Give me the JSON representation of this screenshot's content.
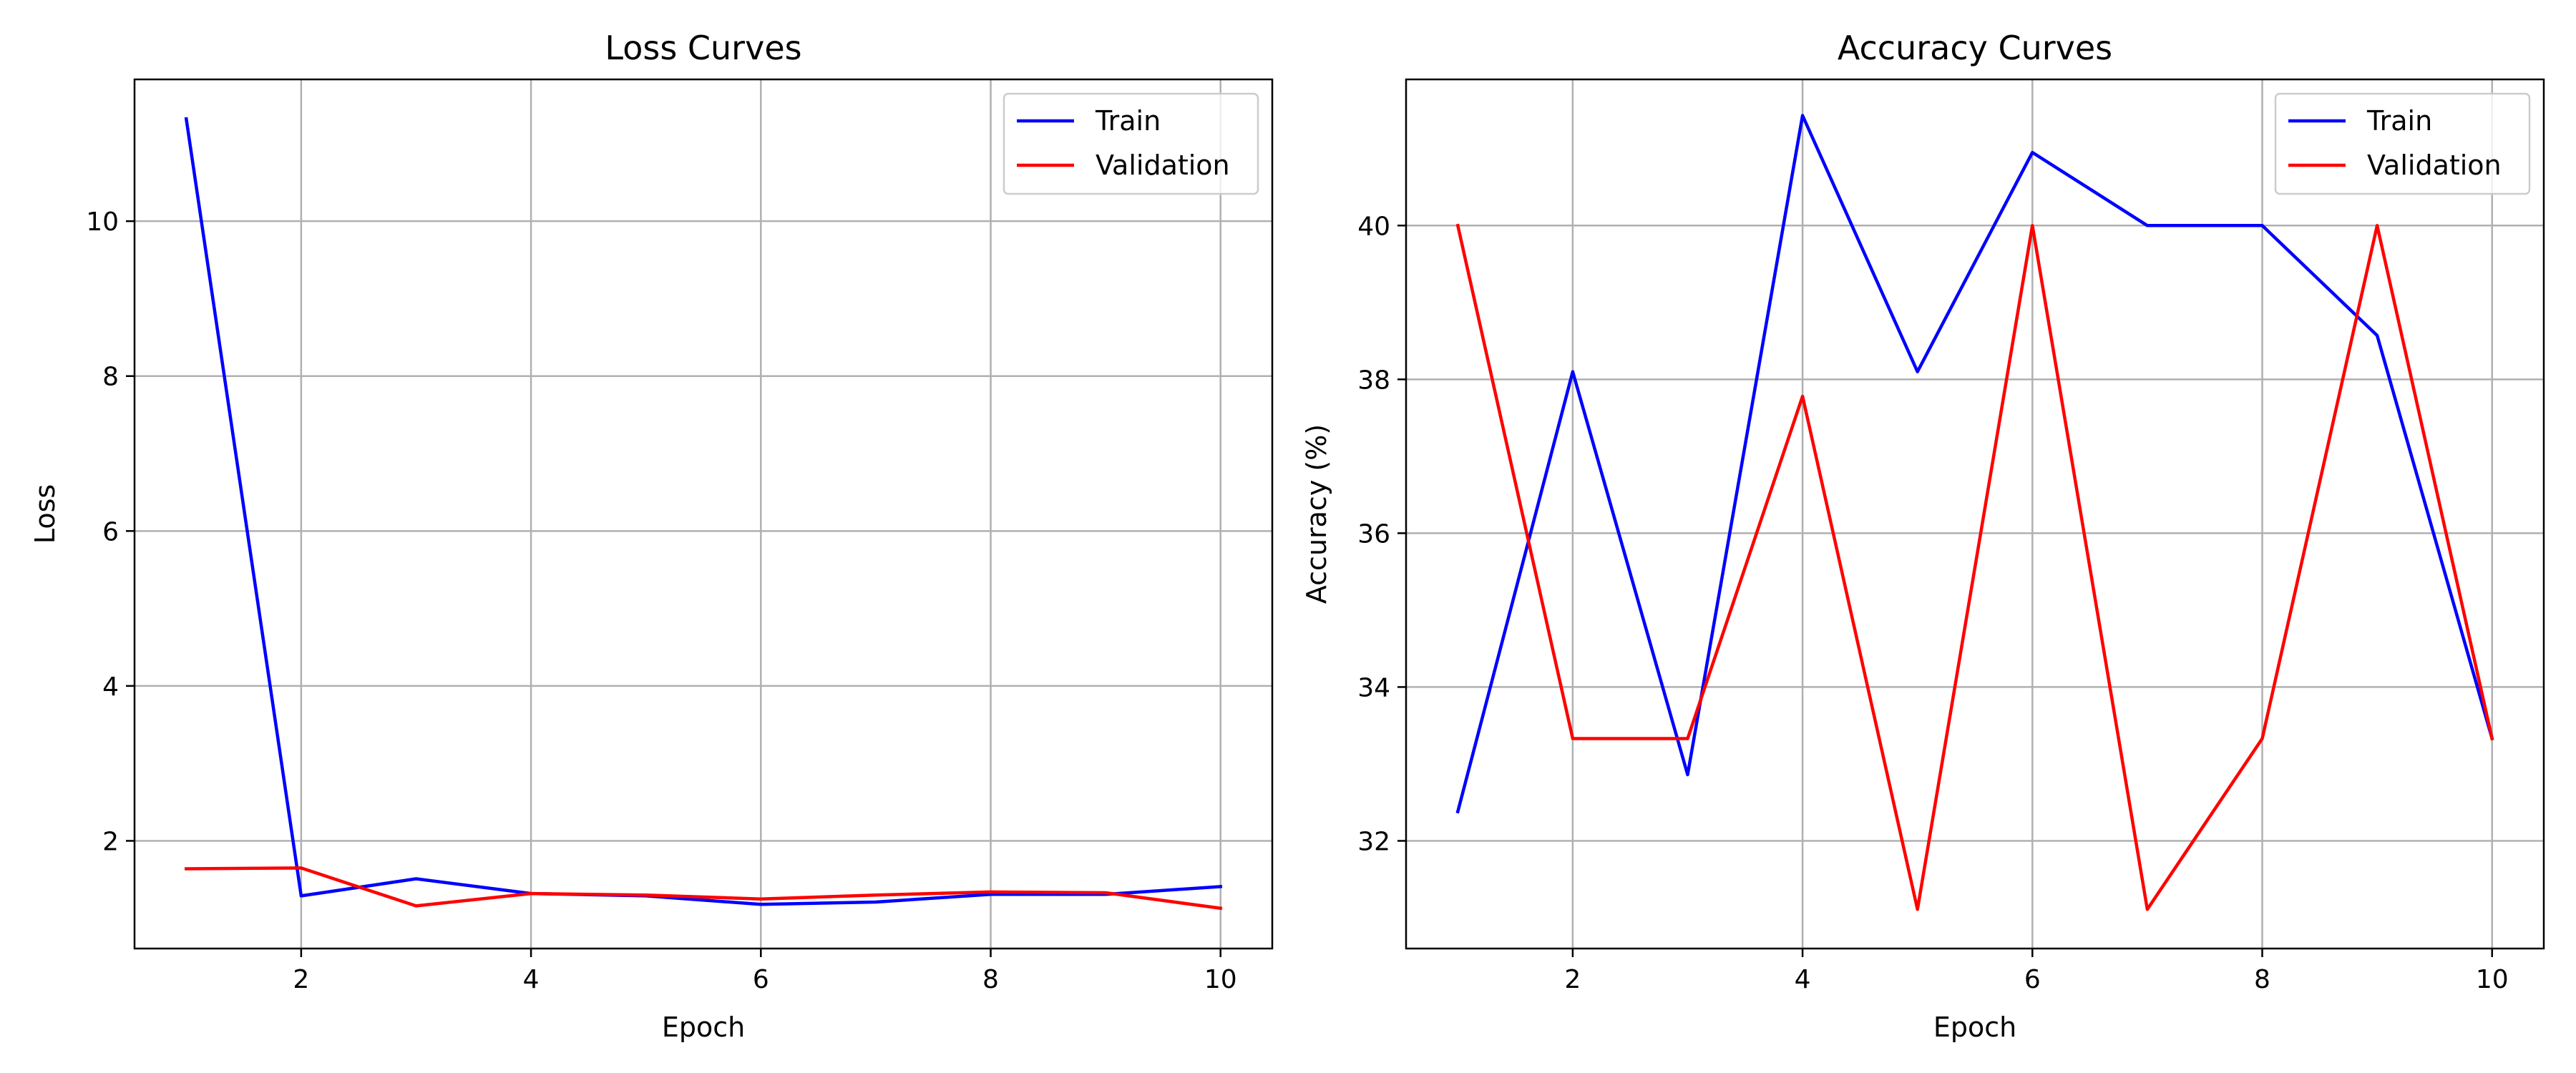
{
  "chart_data": [
    {
      "type": "line",
      "title": "Loss Curves",
      "xlabel": "Epoch",
      "ylabel": "Loss",
      "x": [
        1,
        2,
        3,
        4,
        5,
        6,
        7,
        8,
        9,
        10
      ],
      "xticks": [
        2,
        4,
        6,
        8,
        10
      ],
      "yticks": [
        2,
        4,
        6,
        8,
        10
      ],
      "xlim": [
        0.55,
        10.45
      ],
      "ylim": [
        0.61,
        11.83
      ],
      "grid": true,
      "legend_position": "top-right",
      "series": [
        {
          "name": "Train",
          "color": "#0000ff",
          "values": [
            11.32,
            1.29,
            1.51,
            1.32,
            1.29,
            1.18,
            1.21,
            1.31,
            1.31,
            1.41
          ]
        },
        {
          "name": "Validation",
          "color": "#ff0000",
          "values": [
            1.64,
            1.65,
            1.16,
            1.32,
            1.3,
            1.25,
            1.3,
            1.34,
            1.33,
            1.13
          ]
        }
      ]
    },
    {
      "type": "line",
      "title": "Accuracy Curves",
      "xlabel": "Epoch",
      "ylabel": "Accuracy (%)",
      "x": [
        1,
        2,
        3,
        4,
        5,
        6,
        7,
        8,
        9,
        10
      ],
      "xticks": [
        2,
        4,
        6,
        8,
        10
      ],
      "yticks": [
        32,
        34,
        36,
        38,
        40
      ],
      "xlim": [
        0.55,
        10.45
      ],
      "ylim": [
        30.6,
        41.9
      ],
      "grid": true,
      "legend_position": "top-right",
      "series": [
        {
          "name": "Train",
          "color": "#0000ff",
          "values": [
            32.38,
            38.1,
            32.86,
            41.43,
            38.1,
            40.95,
            40.0,
            40.0,
            38.57,
            33.33
          ]
        },
        {
          "name": "Validation",
          "color": "#ff0000",
          "values": [
            40.0,
            33.33,
            33.33,
            37.78,
            31.11,
            40.0,
            31.11,
            33.33,
            40.0,
            33.33
          ]
        }
      ]
    }
  ]
}
